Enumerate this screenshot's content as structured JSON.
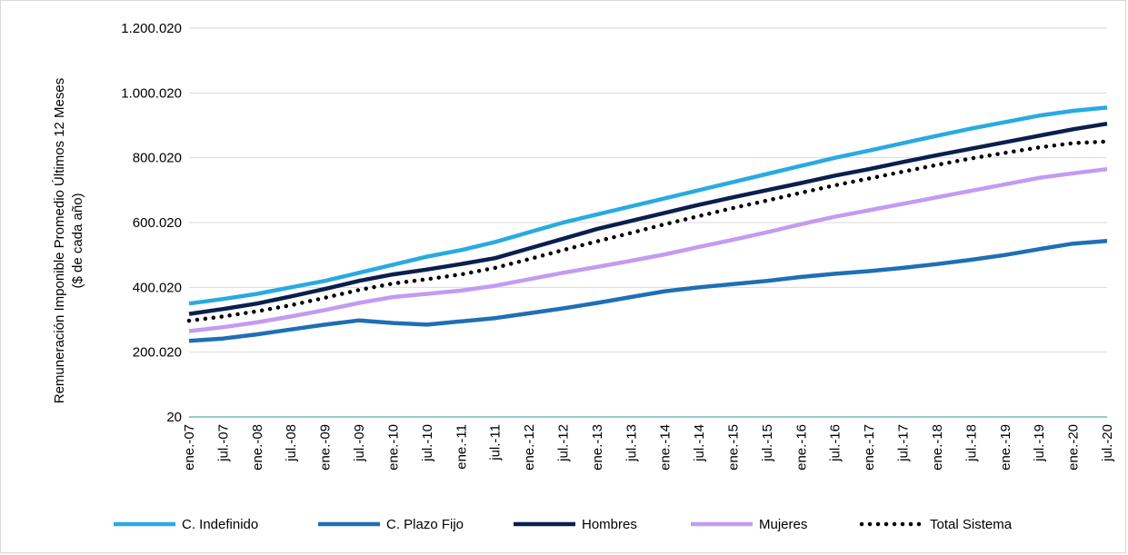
{
  "chart_data": {
    "type": "line",
    "ylabel_line1": "Remuneración Imponible Promedio Últimos 12 Meses",
    "ylabel_line2": "($ de cada año)",
    "ylim": [
      20,
      1200020
    ],
    "y_ticks": [
      20,
      200020,
      400020,
      600020,
      800020,
      1000020,
      1200020
    ],
    "y_tick_labels": [
      "20",
      "200.020",
      "400.020",
      "600.020",
      "800.020",
      "1.000.020",
      "1.200.020"
    ],
    "x_tick_labels": [
      "ene.-07",
      "jul.-07",
      "ene.-08",
      "jul.-08",
      "ene.-09",
      "jul.-09",
      "ene.-10",
      "jul.-10",
      "ene.-11",
      "jul.-11",
      "ene.-12",
      "jul.-12",
      "ene.-13",
      "jul.-13",
      "ene.-14",
      "jul.-14",
      "ene.-15",
      "jul.-15",
      "ene.-16",
      "jul.-16",
      "ene.-17",
      "jul.-17",
      "ene.-18",
      "jul.-18",
      "ene.-19",
      "jul.-19",
      "ene.-20",
      "jul.-20"
    ],
    "grid": true,
    "legend_position": "bottom",
    "series": [
      {
        "name": "C. Indefinido",
        "color": "#29aae1",
        "style": "solid",
        "values": [
          350000,
          364000,
          380000,
          400000,
          420000,
          445000,
          470000,
          495000,
          515000,
          540000,
          570000,
          600000,
          625000,
          650000,
          675000,
          700000,
          725000,
          750000,
          775000,
          800000,
          822000,
          845000,
          868000,
          890000,
          910000,
          930000,
          945000,
          955000
        ]
      },
      {
        "name": "C. Plazo Fijo",
        "color": "#1f6fb5",
        "style": "solid",
        "values": [
          235000,
          242000,
          255000,
          270000,
          285000,
          298000,
          290000,
          285000,
          295000,
          305000,
          320000,
          335000,
          352000,
          370000,
          388000,
          400000,
          410000,
          420000,
          432000,
          442000,
          450000,
          460000,
          472000,
          485000,
          500000,
          518000,
          535000,
          543000
        ]
      },
      {
        "name": "Hombres",
        "color": "#0a1f4d",
        "style": "solid",
        "values": [
          318000,
          333000,
          350000,
          372000,
          395000,
          420000,
          440000,
          455000,
          472000,
          490000,
          520000,
          550000,
          580000,
          605000,
          630000,
          655000,
          678000,
          700000,
          722000,
          745000,
          765000,
          787000,
          808000,
          828000,
          848000,
          868000,
          888000,
          905000
        ]
      },
      {
        "name": "Mujeres",
        "color": "#c39bf0",
        "style": "solid",
        "values": [
          265000,
          277000,
          292000,
          310000,
          330000,
          352000,
          370000,
          380000,
          390000,
          405000,
          425000,
          445000,
          463000,
          482000,
          502000,
          525000,
          547000,
          570000,
          595000,
          618000,
          638000,
          658000,
          678000,
          698000,
          718000,
          738000,
          752000,
          765000
        ]
      },
      {
        "name": "Total Sistema",
        "color": "#000000",
        "style": "dotted",
        "values": [
          297000,
          310000,
          326000,
          345000,
          368000,
          392000,
          412000,
          425000,
          440000,
          460000,
          487000,
          515000,
          542000,
          568000,
          595000,
          620000,
          645000,
          668000,
          692000,
          715000,
          736000,
          757000,
          778000,
          798000,
          815000,
          832000,
          845000,
          850000
        ]
      }
    ]
  }
}
